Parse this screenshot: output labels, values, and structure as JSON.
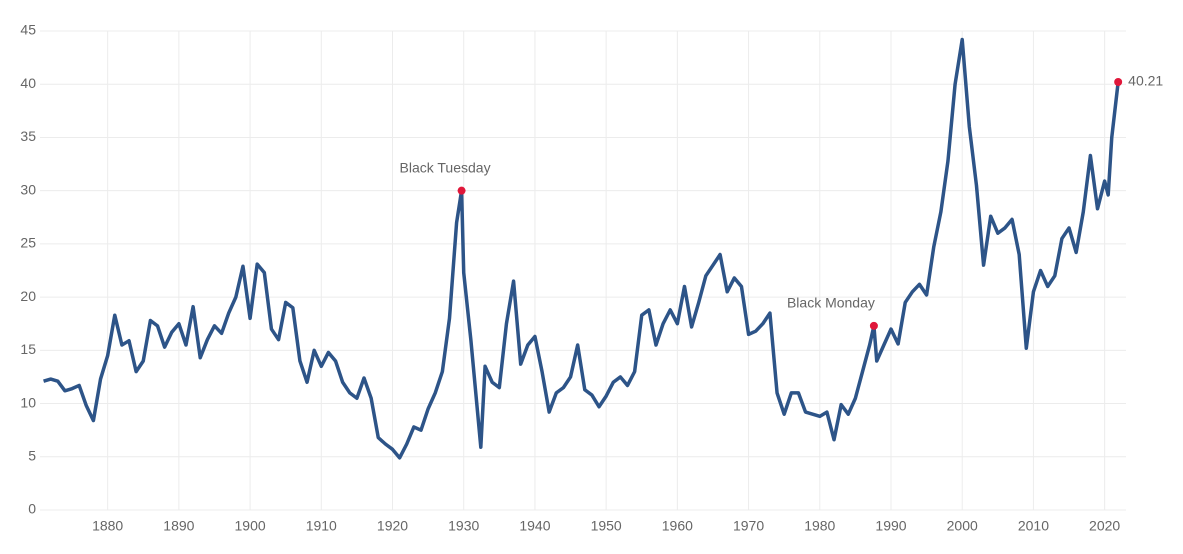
{
  "chart_data": {
    "type": "line",
    "x": [
      1871,
      1872,
      1873,
      1874,
      1875,
      1876,
      1877,
      1878,
      1879,
      1880,
      1881,
      1882,
      1883,
      1884,
      1885,
      1886,
      1887,
      1888,
      1889,
      1890,
      1891,
      1892,
      1893,
      1894,
      1895,
      1896,
      1897,
      1898,
      1899,
      1900,
      1901,
      1902,
      1903,
      1904,
      1905,
      1906,
      1907,
      1908,
      1909,
      1910,
      1911,
      1912,
      1913,
      1914,
      1915,
      1916,
      1917,
      1918,
      1919,
      1920,
      1921,
      1922,
      1923,
      1924,
      1925,
      1926,
      1927,
      1928,
      1929,
      1929.7,
      1930,
      1931,
      1932.4,
      1933,
      1934,
      1935,
      1936,
      1937,
      1938,
      1939,
      1940,
      1941,
      1942,
      1943,
      1944,
      1945,
      1946,
      1947,
      1948,
      1949,
      1950,
      1951,
      1952,
      1953,
      1954,
      1955,
      1956,
      1957,
      1958,
      1959,
      1960,
      1961,
      1962,
      1963,
      1964,
      1965,
      1966,
      1967,
      1968,
      1969,
      1970,
      1971,
      1972,
      1973,
      1974,
      1975,
      1976,
      1977,
      1978,
      1979,
      1980,
      1981,
      1982,
      1983,
      1984,
      1985,
      1986,
      1987,
      1987.6,
      1988,
      1989,
      1990,
      1991,
      1992,
      1993,
      1994,
      1995,
      1996,
      1997,
      1998,
      1999,
      2000,
      2001,
      2002,
      2003,
      2004,
      2005,
      2006,
      2007,
      2008,
      2009,
      2010,
      2011,
      2012,
      2013,
      2014,
      2015,
      2016,
      2017,
      2018,
      2019,
      2020,
      2020.5,
      2021,
      2021.9
    ],
    "series": [
      {
        "color": "#2d5488",
        "values": [
          12.1,
          12.3,
          12.1,
          11.2,
          11.4,
          11.7,
          9.8,
          8.4,
          12.3,
          14.5,
          18.3,
          15.5,
          15.9,
          13.0,
          14.0,
          17.8,
          17.3,
          15.3,
          16.7,
          17.5,
          15.5,
          19.1,
          14.3,
          16.0,
          17.3,
          16.6,
          18.5,
          20.0,
          22.9,
          18.0,
          23.1,
          22.3,
          17.0,
          16.0,
          19.5,
          19.0,
          14.0,
          12.0,
          15.0,
          13.5,
          14.8,
          14.0,
          12.0,
          11.0,
          10.5,
          12.4,
          10.5,
          6.8,
          6.2,
          5.7,
          4.9,
          6.2,
          7.8,
          7.5,
          9.5,
          11.0,
          13.0,
          18.0,
          27.0,
          30.0,
          22.3,
          16.0,
          5.9,
          13.5,
          12.0,
          11.5,
          17.5,
          21.5,
          13.7,
          15.5,
          16.3,
          13.0,
          9.2,
          11.0,
          11.5,
          12.5,
          15.5,
          11.3,
          10.8,
          9.7,
          10.7,
          12.0,
          12.5,
          11.7,
          13.0,
          18.3,
          18.8,
          15.5,
          17.5,
          18.8,
          17.5,
          21.0,
          17.2,
          19.5,
          22.0,
          23.0,
          24.0,
          20.5,
          21.8,
          21.0,
          16.5,
          16.8,
          17.5,
          18.5,
          11.0,
          9.0,
          11.0,
          11.0,
          9.2,
          9.0,
          8.8,
          9.2,
          6.6,
          9.9,
          9.0,
          10.5,
          13.0,
          15.5,
          17.3,
          14.0,
          15.5,
          17.0,
          15.6,
          19.5,
          20.5,
          21.2,
          20.2,
          24.7,
          28.0,
          32.8,
          40.0,
          44.2,
          36.0,
          30.5,
          23.0,
          27.6,
          26.0,
          26.5,
          27.3,
          24.0,
          15.2,
          20.5,
          22.5,
          21.0,
          22.0,
          25.5,
          26.5,
          24.2,
          28.0,
          33.3,
          28.3,
          30.9,
          29.6,
          35.0,
          40.21
        ]
      }
    ],
    "annotations": [
      {
        "label": "Black Tuesday",
        "x": 1929.7,
        "y": 30.0,
        "color": "#e0173a"
      },
      {
        "label": "Black Monday",
        "x": 1987.6,
        "y": 17.3,
        "color": "#e0173a"
      },
      {
        "x": 2021.9,
        "y": 40.21,
        "color": "#e0173a"
      }
    ],
    "xlim": [
      1870.5,
      2023
    ],
    "ylim": [
      0,
      45
    ],
    "xticks": [
      1880,
      1890,
      1900,
      1910,
      1920,
      1930,
      1940,
      1950,
      1960,
      1970,
      1980,
      1990,
      2000,
      2010,
      2020
    ],
    "yticks": [
      0,
      5,
      10,
      15,
      20,
      25,
      30,
      35,
      40,
      45
    ],
    "grid": true
  }
}
